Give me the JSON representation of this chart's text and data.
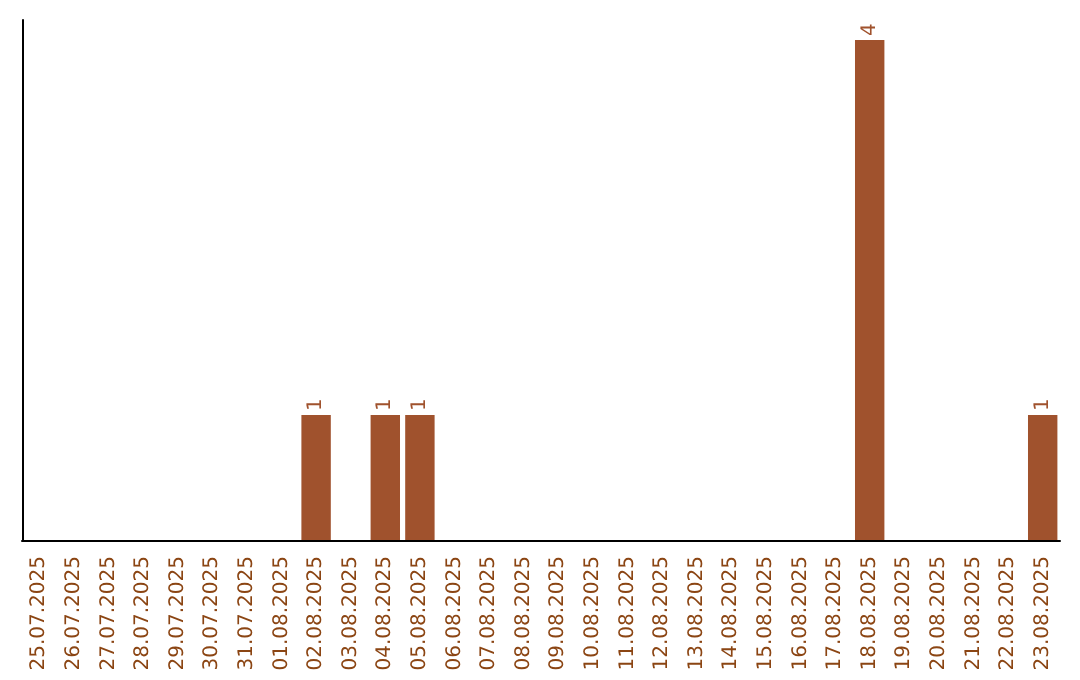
{
  "chart_data": {
    "type": "bar",
    "categories": [
      "25.07.2025",
      "26.07.2025",
      "27.07.2025",
      "28.07.2025",
      "29.07.2025",
      "30.07.2025",
      "31.07.2025",
      "01.08.2025",
      "02.08.2025",
      "03.08.2025",
      "04.08.2025",
      "05.08.2025",
      "06.08.2025",
      "07.08.2025",
      "08.08.2025",
      "09.08.2025",
      "10.08.2025",
      "11.08.2025",
      "12.08.2025",
      "13.08.2025",
      "14.08.2025",
      "15.08.2025",
      "16.08.2025",
      "17.08.2025",
      "18.08.2025",
      "19.08.2025",
      "20.08.2025",
      "21.08.2025",
      "22.08.2025",
      "23.08.2025"
    ],
    "values": [
      0,
      0,
      0,
      0,
      0,
      0,
      0,
      0,
      1,
      0,
      1,
      1,
      0,
      0,
      0,
      0,
      0,
      0,
      0,
      0,
      0,
      0,
      0,
      0,
      4,
      0,
      0,
      0,
      0,
      1
    ],
    "value_labels": [
      null,
      null,
      null,
      null,
      null,
      null,
      null,
      null,
      "1",
      null,
      "1",
      "1",
      null,
      null,
      null,
      null,
      null,
      null,
      null,
      null,
      null,
      null,
      null,
      null,
      "4",
      null,
      null,
      null,
      null,
      "1"
    ],
    "color": "#a0522d",
    "grid": false,
    "tick_labels": "x"
  }
}
